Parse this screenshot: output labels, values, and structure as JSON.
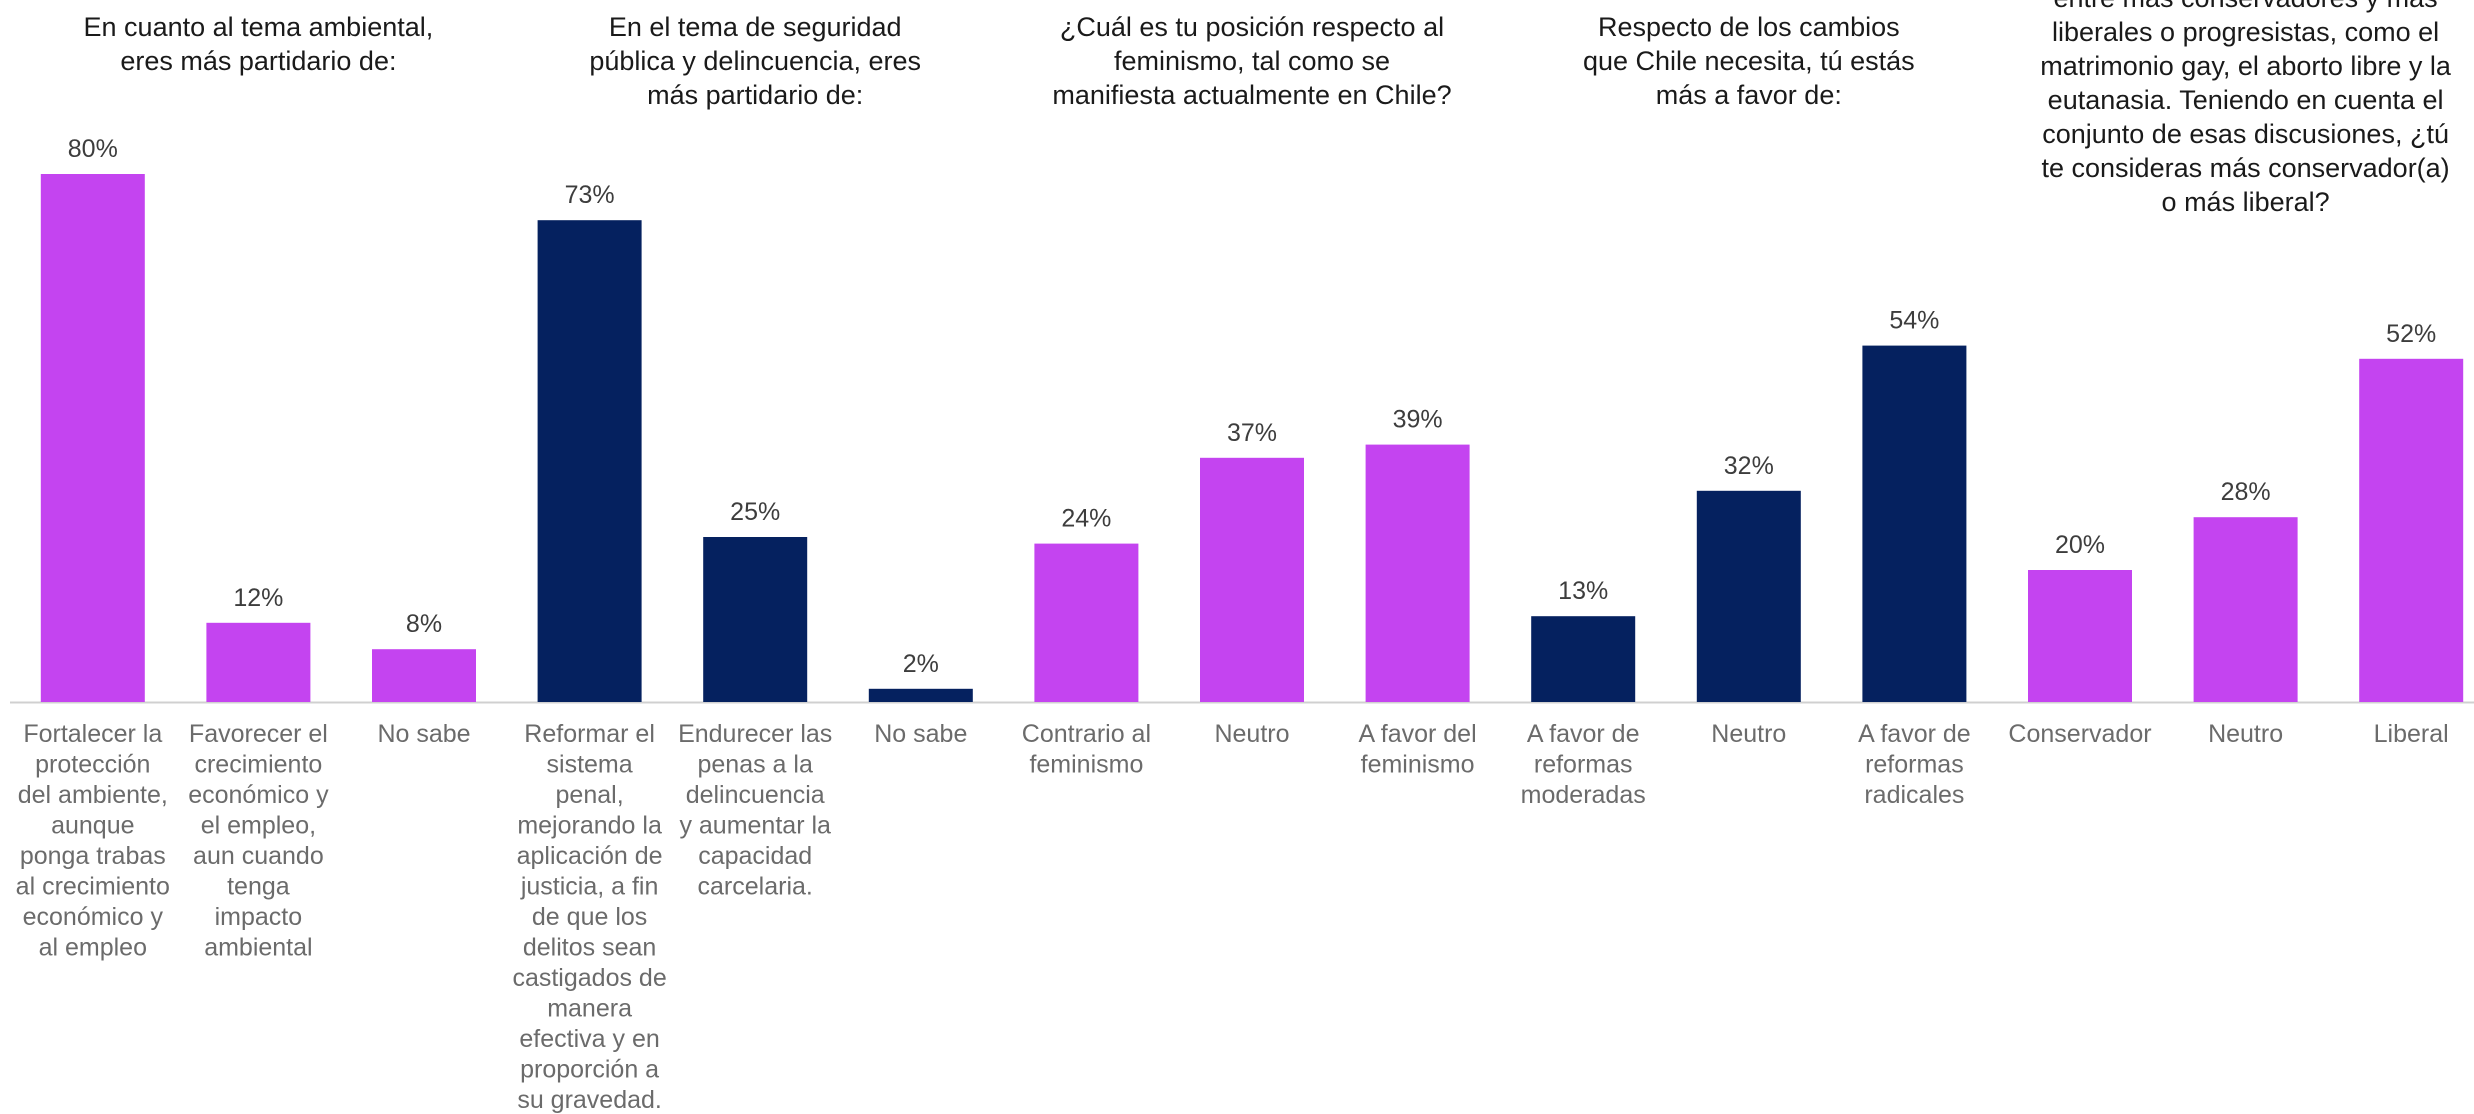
{
  "colors": {
    "magenta": "#c444f0",
    "navy": "#05215f",
    "axis": "#d0d0d0"
  },
  "chart_data": {
    "type": "bar",
    "ylim": [
      0,
      100
    ],
    "grid": false,
    "groups": [
      {
        "title": [
          "En cuanto al tema ambiental,",
          "eres más partidario de:"
        ],
        "color": "magenta",
        "bars": [
          {
            "value": 80,
            "label": "80%",
            "category": [
              "Fortalecer la",
              "protección",
              "del ambiente,",
              "aunque",
              "ponga trabas",
              "al crecimiento",
              "económico y",
              "al empleo"
            ]
          },
          {
            "value": 12,
            "label": "12%",
            "category": [
              "Favorecer el",
              "crecimiento",
              "económico y",
              "el empleo,",
              "aun cuando",
              "tenga",
              "impacto",
              "ambiental"
            ]
          },
          {
            "value": 8,
            "label": "8%",
            "category": [
              "No sabe"
            ]
          }
        ]
      },
      {
        "title": [
          "En el tema de seguridad",
          "pública y delincuencia, eres",
          "más partidario de:"
        ],
        "color": "navy",
        "bars": [
          {
            "value": 73,
            "label": "73%",
            "category": [
              "Reformar el",
              "sistema",
              "penal,",
              "mejorando la",
              "aplicación de",
              "justicia, a fin",
              "de que los",
              "delitos sean",
              "castigados de",
              "manera",
              "efectiva y en",
              "proporción a",
              "su gravedad."
            ]
          },
          {
            "value": 25,
            "label": "25%",
            "category": [
              "Endurecer las",
              "penas a la",
              "delincuencia",
              "y aumentar la",
              "capacidad",
              "carcelaria."
            ]
          },
          {
            "value": 2,
            "label": "2%",
            "category": [
              "No sabe"
            ]
          }
        ]
      },
      {
        "title": [
          "¿Cuál es tu posición respecto al",
          "feminismo, tal como se",
          "manifiesta actualmente en Chile?"
        ],
        "color": "magenta",
        "bars": [
          {
            "value": 24,
            "label": "24%",
            "category": [
              "Contrario al",
              "feminismo"
            ]
          },
          {
            "value": 37,
            "label": "37%",
            "category": [
              "Neutro"
            ]
          },
          {
            "value": 39,
            "label": "39%",
            "category": [
              "A favor del",
              "feminismo"
            ]
          }
        ]
      },
      {
        "title": [
          "Respecto de los cambios",
          "que Chile necesita, tú estás",
          "más a favor de:"
        ],
        "color": "navy",
        "bars": [
          {
            "value": 13,
            "label": "13%",
            "category": [
              "A favor de",
              "reformas",
              "moderadas"
            ]
          },
          {
            "value": 32,
            "label": "32%",
            "category": [
              "Neutro"
            ]
          },
          {
            "value": 54,
            "label": "54%",
            "category": [
              "A favor de",
              "reformas",
              "radicales"
            ]
          }
        ]
      },
      {
        "title": [
          "entre más conservadores y más",
          "liberales o progresistas, como el",
          "matrimonio gay, el aborto libre y la",
          "eutanasia. Teniendo en cuenta el",
          "conjunto de esas discusiones, ¿tú",
          "te consideras más conservador(a)",
          "o más liberal?"
        ],
        "color": "magenta",
        "bars": [
          {
            "value": 20,
            "label": "20%",
            "category": [
              "Conservador"
            ]
          },
          {
            "value": 28,
            "label": "28%",
            "category": [
              "Neutro"
            ]
          },
          {
            "value": 52,
            "label": "52%",
            "category": [
              "Liberal"
            ]
          }
        ]
      }
    ]
  }
}
